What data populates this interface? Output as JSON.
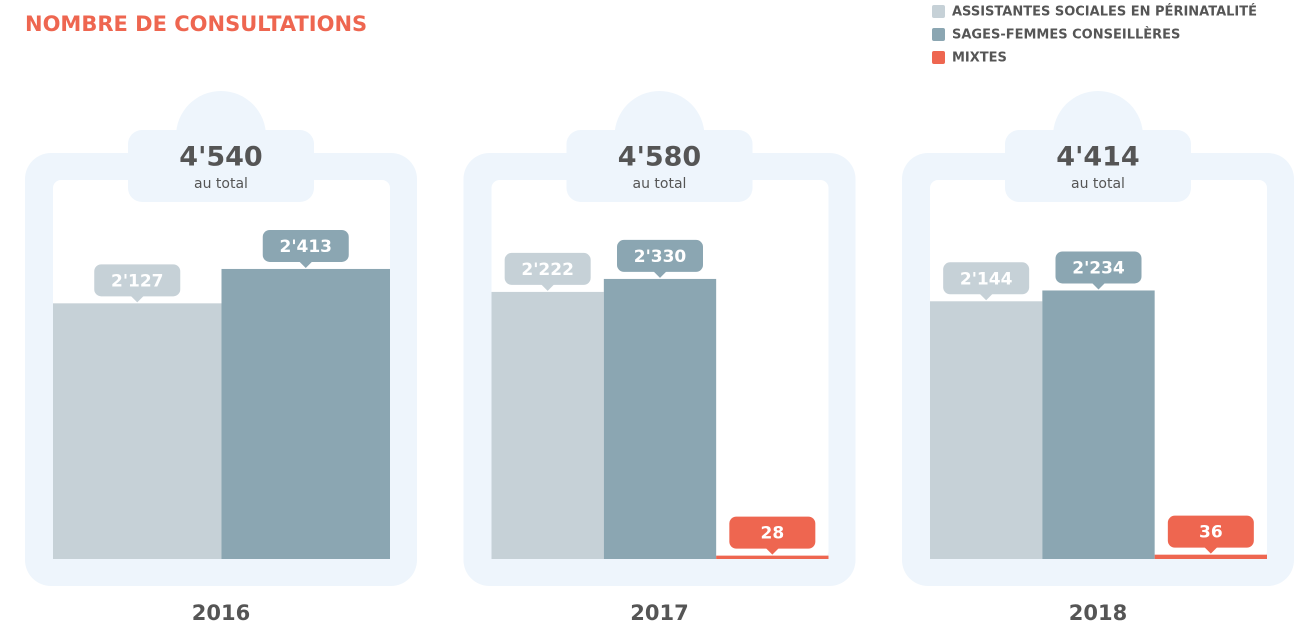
{
  "chart_data": {
    "type": "bar",
    "title": "NOMBRE DE CONSULTATIONS",
    "categories": [
      "2016",
      "2017",
      "2018"
    ],
    "series": [
      {
        "name": "ASSISTANTES SOCIALES EN PÉRINATALITÉ",
        "color": "#c6d1d7",
        "values": [
          2127,
          2222,
          2144
        ],
        "value_labels": [
          "2'127",
          "2'222",
          "2'144"
        ]
      },
      {
        "name": "SAGES-FEMMES CONSEILLÈRES",
        "color": "#8ba6b2",
        "values": [
          2413,
          2330,
          2234
        ],
        "value_labels": [
          "2'413",
          "2'330",
          "2'234"
        ]
      },
      {
        "name": "MIXTES",
        "color": "#ee6650",
        "values": [
          null,
          28,
          36
        ],
        "value_labels": [
          null,
          "28",
          "36"
        ]
      }
    ],
    "total_labels": [
      "4'540",
      "4'580",
      "4'414"
    ],
    "total_caption": "au total"
  }
}
